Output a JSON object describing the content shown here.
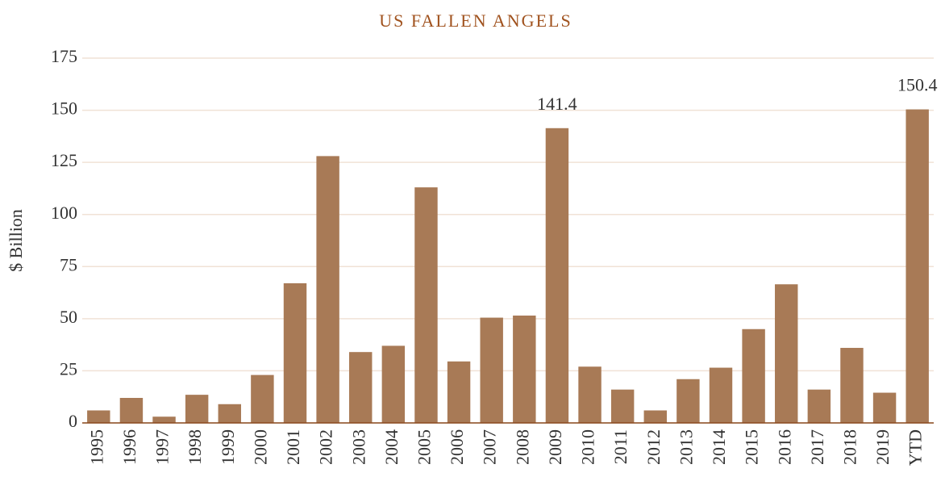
{
  "chart_data": {
    "type": "bar",
    "title": "US FALLEN ANGELS",
    "y_label": "$ Billion",
    "categories": [
      "1995",
      "1996",
      "1997",
      "1998",
      "1999",
      "2000",
      "2001",
      "2002",
      "2003",
      "2004",
      "2005",
      "2006",
      "2007",
      "2008",
      "2009",
      "2010",
      "2011",
      "2012",
      "2013",
      "2014",
      "2015",
      "2016",
      "2017",
      "2018",
      "2019",
      "YTD"
    ],
    "values": [
      6,
      12,
      3,
      13.5,
      9,
      23,
      67,
      128,
      34,
      37,
      113,
      29.5,
      50.5,
      51.5,
      141.4,
      27,
      16,
      6,
      21,
      26.5,
      45,
      66.5,
      16,
      36,
      14.5,
      150.4
    ],
    "value_labels": [
      null,
      null,
      null,
      null,
      null,
      null,
      null,
      null,
      null,
      null,
      null,
      null,
      null,
      null,
      "141.4",
      null,
      null,
      null,
      null,
      null,
      null,
      null,
      null,
      null,
      null,
      "150.4"
    ],
    "color": "#a87a56",
    "ylim": [
      0,
      175
    ],
    "yticks": [
      0,
      25,
      50,
      75,
      100,
      125,
      150,
      175
    ],
    "grid": true
  }
}
